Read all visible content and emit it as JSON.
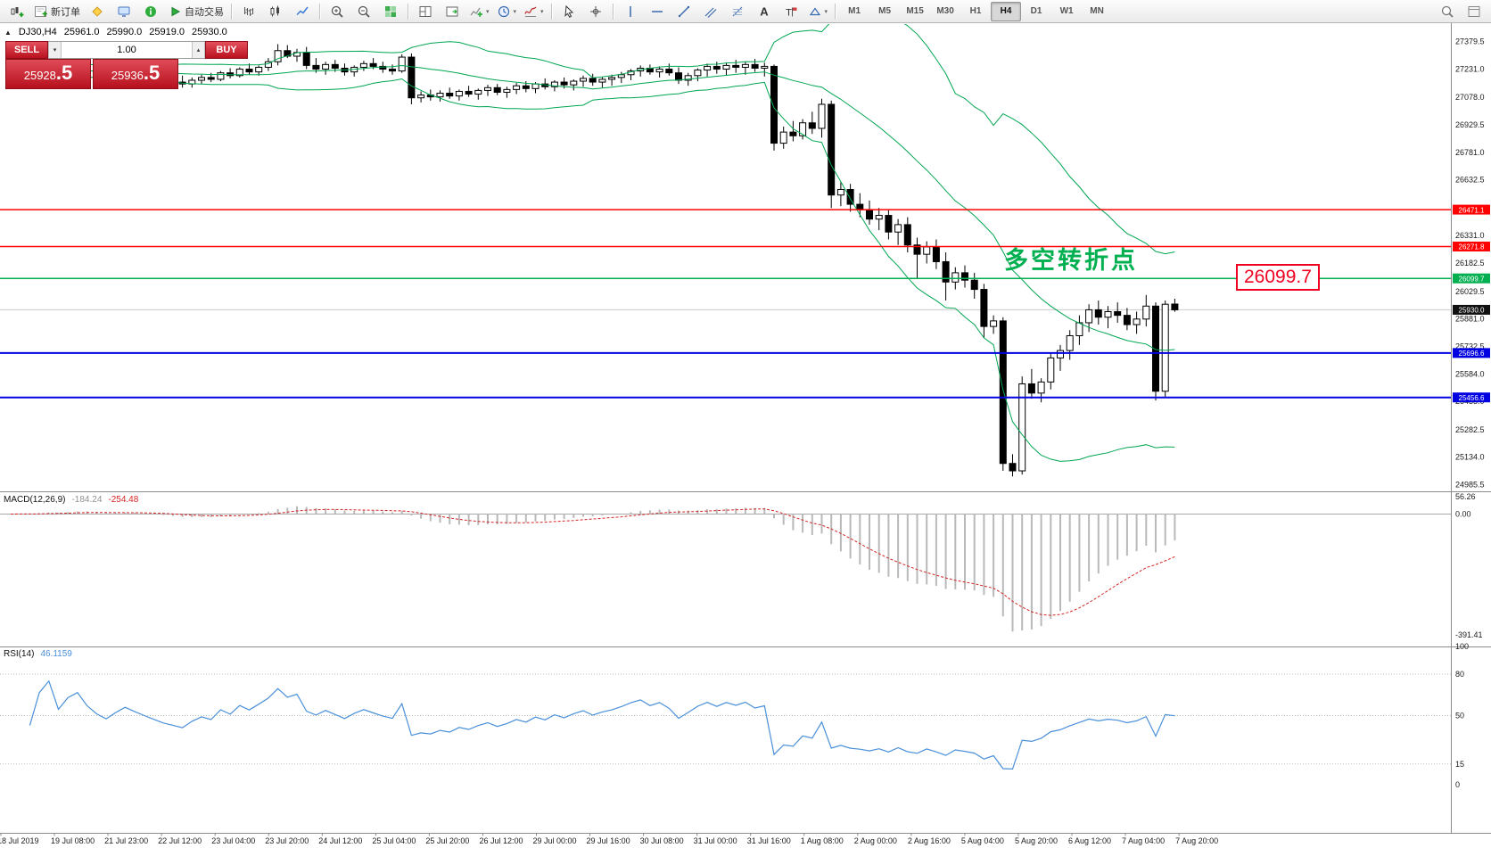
{
  "colors": {
    "bollinger": "#00a651",
    "bull": "#ffffff",
    "bear": "#000000",
    "macd_histogram": "#b9b9b9",
    "macd_signal": "#d42424",
    "macd_zero": "#a8a8a8",
    "rsi_line": "#4a90d9",
    "annotation_green": "#00b050",
    "callout_red": "#f00020",
    "current_price_bg": "#111111",
    "axis_text": "#1a1a1a"
  },
  "icons": {
    "collapse": "▲",
    "spin_down": "▾",
    "spin_up": "▴"
  },
  "toolbar": {
    "groups": [
      {
        "name": "file-group",
        "items": [
          {
            "name": "new-chart-button",
            "icon": "candle-plus"
          },
          {
            "name": "new-order-button",
            "icon": "order",
            "label": "新订单"
          },
          {
            "name": "metaquotes-button",
            "icon": "diamond"
          },
          {
            "name": "charts-window-button",
            "icon": "monitor"
          },
          {
            "name": "news-button",
            "icon": "info"
          },
          {
            "name": "autotrading-button",
            "icon": "play",
            "label": "自动交易"
          }
        ]
      },
      {
        "name": "chart-type-group",
        "items": [
          {
            "name": "bar-chart-button",
            "icon": "bars"
          },
          {
            "name": "candlestick-button",
            "icon": "candles"
          },
          {
            "name": "line-chart-button",
            "icon": "line"
          }
        ]
      },
      {
        "name": "zoom-group",
        "items": [
          {
            "name": "zoom-in-button",
            "icon": "zoom-in"
          },
          {
            "name": "zoom-out-button",
            "icon": "zoom-out"
          },
          {
            "name": "tile-windows-button",
            "icon": "grid-green"
          }
        ]
      },
      {
        "name": "window-group",
        "items": [
          {
            "name": "arrange-windows-button",
            "icon": "tile"
          },
          {
            "name": "auto-scroll-button",
            "icon": "shift"
          },
          {
            "name": "add-chart-button",
            "icon": "chart-plus",
            "dropdown": true
          },
          {
            "name": "period-menu-button",
            "icon": "clock",
            "dropdown": true
          },
          {
            "name": "indicators-button",
            "icon": "indicator",
            "dropdown": true
          }
        ]
      },
      {
        "name": "cursor-group",
        "items": [
          {
            "name": "cursor-button",
            "icon": "cursor"
          },
          {
            "name": "crosshair-button",
            "icon": "crosshair"
          }
        ]
      },
      {
        "name": "objects-group",
        "items": [
          {
            "name": "vertical-line-button",
            "icon": "vline"
          },
          {
            "name": "horizontal-line-button",
            "icon": "hline"
          },
          {
            "name": "trendline-button",
            "icon": "trend"
          },
          {
            "name": "channel-button",
            "icon": "channel"
          },
          {
            "name": "fibonacci-button",
            "icon": "fibo"
          },
          {
            "name": "text-button",
            "icon": "text-a"
          },
          {
            "name": "label-button",
            "icon": "label-t"
          },
          {
            "name": "shapes-button",
            "icon": "shapes",
            "dropdown": true
          }
        ]
      }
    ],
    "timeframes": {
      "items": [
        "M1",
        "M5",
        "M15",
        "M30",
        "H1",
        "H4",
        "D1",
        "W1",
        "MN"
      ],
      "active": "H4"
    },
    "right_icons": [
      {
        "name": "search-button",
        "icon": "search"
      },
      {
        "name": "window-list-button",
        "icon": "window"
      }
    ]
  },
  "chart": {
    "header": {
      "symbol": "DJ30,H4",
      "open": "25961.0",
      "high": "25990.0",
      "low": "25919.0",
      "close": "25930.0"
    },
    "one_click": {
      "sell_label": "SELL",
      "buy_label": "BUY",
      "volume": "1.00",
      "sell_price": "25928.5",
      "sell_price_main": "25928",
      "sell_price_big": ".5",
      "buy_price": "25936.5",
      "buy_price_main": "25936",
      "buy_price_big": ".5"
    },
    "annotation": {
      "text": "多空转折点",
      "color": "#00b050"
    },
    "price_callout": {
      "text": "26099.7",
      "color": "#f00020"
    },
    "hlines": [
      {
        "price": 26471.1,
        "label": "26471.1",
        "color": "#ff0000",
        "weight": 1.5
      },
      {
        "price": 26271.8,
        "label": "26271.8",
        "color": "#ff0000",
        "weight": 1.5
      },
      {
        "price": 26099.7,
        "label": "26099.7",
        "color": "#00b050",
        "weight": 1.5
      },
      {
        "price": 25696.6,
        "label": "25696.6",
        "color": "#0000e0",
        "weight": 2
      },
      {
        "price": 25456.6,
        "label": "25456.6",
        "color": "#0000e0",
        "weight": 2
      }
    ],
    "current_price": {
      "value": 25930.0,
      "label": "25930.0"
    },
    "axis_labels": [
      27379.5,
      27231.0,
      27078.0,
      26929.5,
      26781.0,
      26632.5,
      26331.0,
      26182.5,
      26029.5,
      25881.0,
      25732.5,
      25584.0,
      25435.0,
      25282.5,
      25134.0,
      24985.5
    ]
  },
  "panels": {
    "macd": {
      "name": "MACD(12,26,9)",
      "value_main": "-184.24",
      "value_signal": "-254.48",
      "axis": [
        "56.26",
        "0.00",
        "-391.41"
      ]
    },
    "rsi": {
      "name": "RSI(14)",
      "value": "46.1159",
      "axis": [
        "100",
        "80",
        "50",
        "15",
        "0"
      ],
      "levels": [
        80,
        50,
        15
      ]
    }
  },
  "time_axis": {
    "labels": [
      "18 Jul 2019",
      "19 Jul 08:00",
      "21 Jul 23:00",
      "22 Jul 12:00",
      "23 Jul 04:00",
      "23 Jul 20:00",
      "24 Jul 12:00",
      "25 Jul 04:00",
      "25 Jul 20:00",
      "26 Jul 12:00",
      "29 Jul 00:00",
      "29 Jul 16:00",
      "30 Jul 08:00",
      "31 Jul 00:00",
      "31 Jul 16:00",
      "1 Aug 08:00",
      "2 Aug 00:00",
      "2 Aug 16:00",
      "5 Aug 04:00",
      "5 Aug 20:00",
      "6 Aug 12:00",
      "7 Aug 04:00",
      "7 Aug 20:00"
    ]
  },
  "chart_data": {
    "type": "candlestick",
    "symbol": "DJ30",
    "timeframe": "H4",
    "title": "DJ30,H4 25961.0 25990.0 25919.0 25930.0",
    "y_axis": {
      "min": 24985.5,
      "max": 27379.5
    },
    "overlays": {
      "bollinger": {
        "period": 20,
        "deviation": 2
      }
    },
    "candles": [
      [
        27180,
        27220,
        27150,
        27200
      ],
      [
        27200,
        27240,
        27170,
        27215
      ],
      [
        27215,
        27245,
        27185,
        27195
      ],
      [
        27195,
        27230,
        27160,
        27220
      ],
      [
        27220,
        27255,
        27190,
        27240
      ],
      [
        27240,
        27265,
        27200,
        27210
      ],
      [
        27210,
        27250,
        27180,
        27235
      ],
      [
        27235,
        27270,
        27205,
        27250
      ],
      [
        27250,
        27280,
        27215,
        27225
      ],
      [
        27225,
        27260,
        27190,
        27205
      ],
      [
        27205,
        27240,
        27170,
        27190
      ],
      [
        27190,
        27225,
        27155,
        27210
      ],
      [
        27210,
        27245,
        27180,
        27230
      ],
      [
        27230,
        27260,
        27195,
        27215
      ],
      [
        27215,
        27250,
        27185,
        27200
      ],
      [
        27200,
        27235,
        27165,
        27185
      ],
      [
        27185,
        27215,
        27150,
        27170
      ],
      [
        27170,
        27205,
        27140,
        27160
      ],
      [
        27160,
        27195,
        27130,
        27150
      ],
      [
        27150,
        27185,
        27130,
        27170
      ],
      [
        27170,
        27200,
        27150,
        27185
      ],
      [
        27185,
        27210,
        27160,
        27175
      ],
      [
        27175,
        27220,
        27165,
        27210
      ],
      [
        27210,
        27235,
        27180,
        27195
      ],
      [
        27195,
        27240,
        27185,
        27230
      ],
      [
        27230,
        27260,
        27200,
        27215
      ],
      [
        27215,
        27250,
        27195,
        27240
      ],
      [
        27240,
        27290,
        27220,
        27270
      ],
      [
        27270,
        27365,
        27250,
        27330
      ],
      [
        27330,
        27360,
        27290,
        27300
      ],
      [
        27300,
        27340,
        27270,
        27320
      ],
      [
        27320,
        27350,
        27230,
        27250
      ],
      [
        27250,
        27290,
        27210,
        27230
      ],
      [
        27230,
        27270,
        27200,
        27255
      ],
      [
        27255,
        27280,
        27215,
        27235
      ],
      [
        27235,
        27260,
        27195,
        27215
      ],
      [
        27215,
        27250,
        27190,
        27240
      ],
      [
        27240,
        27275,
        27220,
        27260
      ],
      [
        27260,
        27290,
        27230,
        27245
      ],
      [
        27245,
        27270,
        27210,
        27230
      ],
      [
        27230,
        27255,
        27200,
        27220
      ],
      [
        27220,
        27310,
        27210,
        27295
      ],
      [
        27295,
        27315,
        27040,
        27075
      ],
      [
        27075,
        27110,
        27050,
        27090
      ],
      [
        27090,
        27120,
        27060,
        27080
      ],
      [
        27080,
        27115,
        27055,
        27100
      ],
      [
        27100,
        27130,
        27070,
        27085
      ],
      [
        27085,
        27120,
        27060,
        27110
      ],
      [
        27110,
        27140,
        27080,
        27095
      ],
      [
        27095,
        27125,
        27065,
        27115
      ],
      [
        27115,
        27145,
        27085,
        27130
      ],
      [
        27130,
        27150,
        27090,
        27105
      ],
      [
        27105,
        27135,
        27075,
        27120
      ],
      [
        27120,
        27155,
        27095,
        27140
      ],
      [
        27140,
        27165,
        27105,
        27125
      ],
      [
        27125,
        27160,
        27100,
        27150
      ],
      [
        27150,
        27180,
        27120,
        27135
      ],
      [
        27135,
        27170,
        27110,
        27160
      ],
      [
        27160,
        27185,
        27125,
        27145
      ],
      [
        27145,
        27175,
        27115,
        27165
      ],
      [
        27165,
        27195,
        27135,
        27180
      ],
      [
        27180,
        27205,
        27140,
        27160
      ],
      [
        27160,
        27190,
        27130,
        27175
      ],
      [
        27175,
        27200,
        27140,
        27185
      ],
      [
        27185,
        27215,
        27155,
        27200
      ],
      [
        27200,
        27230,
        27170,
        27220
      ],
      [
        27220,
        27250,
        27190,
        27235
      ],
      [
        27235,
        27255,
        27200,
        27215
      ],
      [
        27215,
        27245,
        27185,
        27230
      ],
      [
        27230,
        27260,
        27195,
        27210
      ],
      [
        27210,
        27240,
        27150,
        27170
      ],
      [
        27170,
        27210,
        27140,
        27195
      ],
      [
        27195,
        27235,
        27165,
        27225
      ],
      [
        27225,
        27260,
        27190,
        27245
      ],
      [
        27245,
        27270,
        27205,
        27230
      ],
      [
        27230,
        27265,
        27195,
        27250
      ],
      [
        27250,
        27280,
        27210,
        27240
      ],
      [
        27240,
        27270,
        27200,
        27255
      ],
      [
        27255,
        27285,
        27215,
        27235
      ],
      [
        27235,
        27265,
        27190,
        27245
      ],
      [
        27245,
        27255,
        26790,
        26830
      ],
      [
        26830,
        26920,
        26800,
        26890
      ],
      [
        26890,
        26950,
        26840,
        26870
      ],
      [
        26870,
        26960,
        26850,
        26940
      ],
      [
        26940,
        27000,
        26880,
        26910
      ],
      [
        26910,
        27070,
        26860,
        27040
      ],
      [
        27040,
        27060,
        26480,
        26550
      ],
      [
        26550,
        26620,
        26490,
        26580
      ],
      [
        26580,
        26610,
        26460,
        26500
      ],
      [
        26500,
        26560,
        26430,
        26470
      ],
      [
        26470,
        26520,
        26390,
        26420
      ],
      [
        26420,
        26480,
        26360,
        26440
      ],
      [
        26440,
        26470,
        26310,
        26350
      ],
      [
        26350,
        26420,
        26280,
        26390
      ],
      [
        26390,
        26430,
        26240,
        26280
      ],
      [
        26280,
        26320,
        26100,
        26230
      ],
      [
        26230,
        26300,
        26180,
        26270
      ],
      [
        26270,
        26310,
        26150,
        26190
      ],
      [
        26190,
        26240,
        25980,
        26080
      ],
      [
        26080,
        26160,
        26040,
        26130
      ],
      [
        26130,
        26170,
        26050,
        26090
      ],
      [
        26090,
        26130,
        25990,
        26040
      ],
      [
        26040,
        26070,
        25780,
        25840
      ],
      [
        25840,
        25900,
        25800,
        25870
      ],
      [
        25870,
        25890,
        25060,
        25100
      ],
      [
        25100,
        25150,
        25030,
        25060
      ],
      [
        25060,
        25570,
        25040,
        25530
      ],
      [
        25530,
        25610,
        25450,
        25480
      ],
      [
        25480,
        25560,
        25430,
        25540
      ],
      [
        25540,
        25700,
        25500,
        25670
      ],
      [
        25670,
        25740,
        25600,
        25710
      ],
      [
        25710,
        25820,
        25660,
        25790
      ],
      [
        25790,
        25900,
        25740,
        25860
      ],
      [
        25860,
        25960,
        25810,
        25930
      ],
      [
        25930,
        25980,
        25850,
        25890
      ],
      [
        25890,
        25950,
        25830,
        25920
      ],
      [
        25920,
        25970,
        25860,
        25900
      ],
      [
        25900,
        25940,
        25820,
        25850
      ],
      [
        25850,
        25920,
        25800,
        25880
      ],
      [
        25880,
        26010,
        25840,
        25950
      ],
      [
        25950,
        25970,
        25440,
        25490
      ],
      [
        25490,
        25980,
        25460,
        25960
      ],
      [
        25961,
        25990,
        25919,
        25930
      ]
    ]
  }
}
